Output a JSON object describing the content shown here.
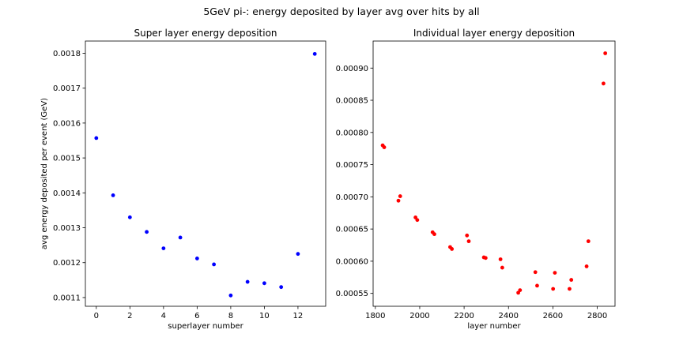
{
  "suptitle": "5GeV pi-: energy deposited by layer avg over hits by all",
  "chart_data": [
    {
      "type": "scatter",
      "title": "Super layer energy deposition",
      "xlabel": "superlayer number",
      "ylabel": "avg energy deposited per event (GeV)",
      "xlim": [
        -0.65,
        13.65
      ],
      "ylim": [
        0.001075,
        0.001835
      ],
      "xticks": [
        0,
        2,
        4,
        6,
        8,
        10,
        12
      ],
      "yticks": [
        0.0011,
        0.0012,
        0.0013,
        0.0014,
        0.0015,
        0.0016,
        0.0017,
        0.0018
      ],
      "ytick_labels": [
        "0.0011",
        "0.0012",
        "0.0013",
        "0.0014",
        "0.0015",
        "0.0016",
        "0.0017",
        "0.0018"
      ],
      "color": "#0000ff",
      "x": [
        0,
        1,
        2,
        3,
        4,
        5,
        6,
        7,
        8,
        9,
        10,
        11,
        12,
        13
      ],
      "y": [
        0.001557,
        0.001393,
        0.00133,
        0.001288,
        0.001241,
        0.001272,
        0.001212,
        0.001195,
        0.001106,
        0.001145,
        0.001141,
        0.00113,
        0.001225,
        0.001798
      ]
    },
    {
      "type": "scatter",
      "title": "Individual layer energy deposition",
      "xlabel": "layer number",
      "ylabel": "",
      "xlim": [
        1790,
        2880
      ],
      "ylim": [
        0.00053,
        0.000942
      ],
      "xticks": [
        1800,
        2000,
        2200,
        2400,
        2600,
        2800
      ],
      "yticks": [
        0.00055,
        0.0006,
        0.00065,
        0.0007,
        0.00075,
        0.0008,
        0.00085,
        0.0009
      ],
      "ytick_labels": [
        "0.00055",
        "0.00060",
        "0.00065",
        "0.00070",
        "0.00075",
        "0.00080",
        "0.00085",
        "0.00090"
      ],
      "color": "#ff0000",
      "x": [
        1833,
        1840,
        1904,
        1912,
        1981,
        1989,
        2058,
        2066,
        2137,
        2145,
        2213,
        2221,
        2289,
        2297,
        2364,
        2372,
        2444,
        2452,
        2521,
        2529,
        2601,
        2609,
        2675,
        2683,
        2752,
        2760,
        2828,
        2836
      ],
      "y": [
        0.00078,
        0.000777,
        0.000694,
        0.000701,
        0.000668,
        0.000664,
        0.000645,
        0.000642,
        0.000622,
        0.000619,
        0.00064,
        0.000631,
        0.000606,
        0.000605,
        0.000603,
        0.00059,
        0.000551,
        0.000555,
        0.000583,
        0.000562,
        0.000557,
        0.000582,
        0.000557,
        0.000571,
        0.000592,
        0.000631,
        0.000876,
        0.000923
      ]
    }
  ]
}
